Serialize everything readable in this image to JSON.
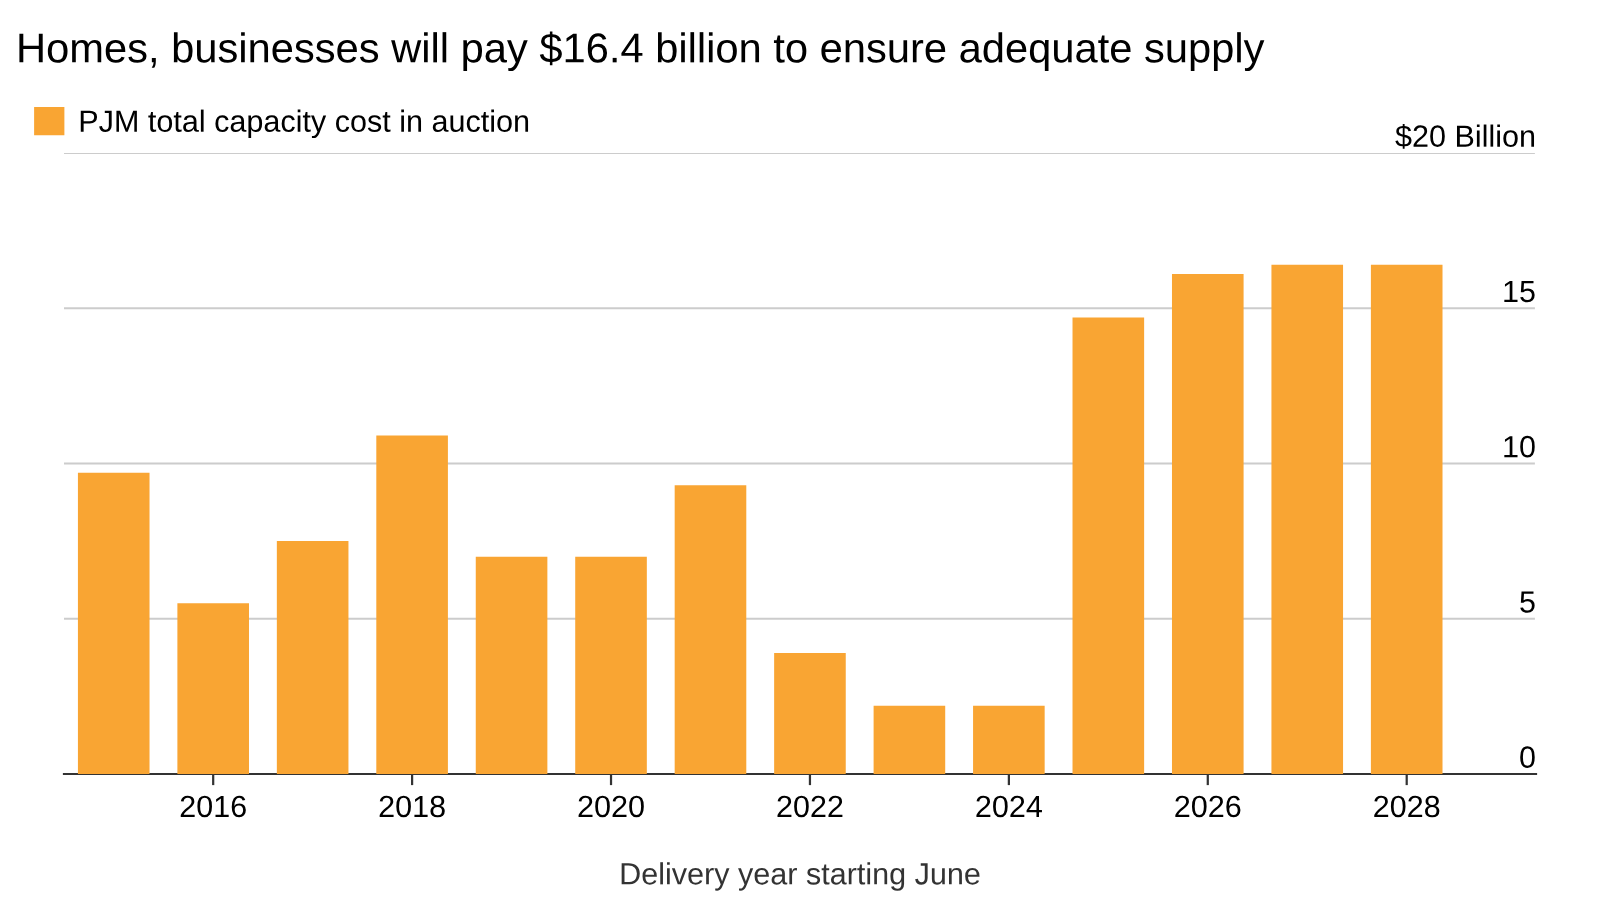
{
  "chart_data": {
    "type": "bar",
    "title": "Homes, businesses will pay $16.4 billion to ensure adequate supply",
    "xlabel": "Delivery year starting June",
    "x": [
      2015,
      2016,
      2017,
      2018,
      2019,
      2020,
      2021,
      2022,
      2023,
      2024,
      2025,
      2026,
      2027,
      2028
    ],
    "series": [
      {
        "name": "PJM total capacity cost in auction",
        "color": "#f9a533",
        "values": [
          9.7,
          5.5,
          7.5,
          10.9,
          7.0,
          7.0,
          9.3,
          3.9,
          2.2,
          2.2,
          14.7,
          16.1,
          16.4,
          16.4
        ]
      }
    ],
    "xlim": [
      2014.5,
      2029.3
    ],
    "xticks": [
      2016,
      2018,
      2020,
      2022,
      2024,
      2026,
      2028
    ],
    "ylim": [
      0,
      20
    ],
    "yticks": [
      0,
      5,
      10,
      15,
      {
        "value": 20,
        "label": "$20 Billion"
      }
    ],
    "grid": "y",
    "legend": "top left"
  }
}
